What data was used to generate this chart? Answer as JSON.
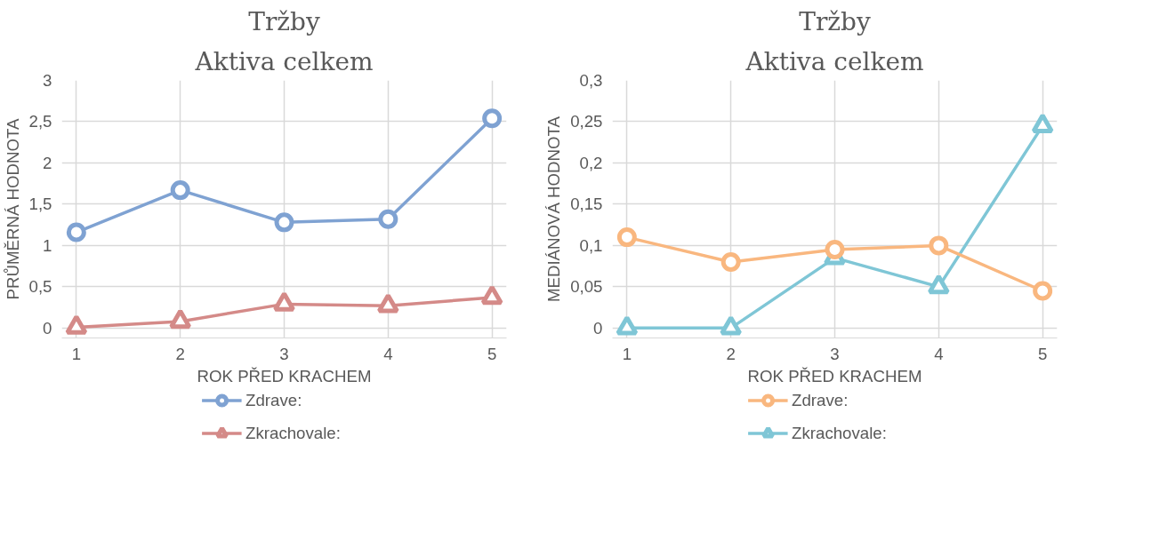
{
  "chart_data": [
    {
      "type": "line",
      "title": "Tržby",
      "subtitle": "Aktiva celkem",
      "xlabel": "ROK PŘED KRACHEM",
      "ylabel": "PRŮMĚRNÁ HODNOTA",
      "x": [
        1,
        2,
        3,
        4,
        5
      ],
      "xlim": [
        1,
        5
      ],
      "xticks": [
        1,
        2,
        3,
        4,
        5
      ],
      "ylim": [
        -0.12,
        3
      ],
      "yticks": [
        {
          "value": 0,
          "label": "0"
        },
        {
          "value": 0.5,
          "label": "0,5"
        },
        {
          "value": 1,
          "label": "1"
        },
        {
          "value": 1.5,
          "label": "1,5"
        },
        {
          "value": 2,
          "label": "2"
        },
        {
          "value": 2.5,
          "label": "2,5"
        },
        {
          "value": 3,
          "label": "3"
        }
      ],
      "grid": true,
      "legend": "bottom",
      "line_style": "solid",
      "series": [
        {
          "name": "Zdrave:",
          "color": "#7fa2d2",
          "marker": "circle",
          "values": [
            1.16,
            1.67,
            1.28,
            1.32,
            2.54
          ]
        },
        {
          "name": "Zkrachovale:",
          "color": "#d48a88",
          "marker": "triangle",
          "values": [
            0.01,
            0.08,
            0.29,
            0.27,
            0.37
          ]
        }
      ]
    },
    {
      "type": "line",
      "title": "Tržby",
      "subtitle": "Aktiva celkem",
      "xlabel": "ROK PŘED KRACHEM",
      "ylabel": "MEDIÁNOVÁ HODNOTA",
      "x": [
        1,
        2,
        3,
        4,
        5
      ],
      "xlim": [
        1,
        5
      ],
      "xticks": [
        1,
        2,
        3,
        4,
        5
      ],
      "ylim": [
        -0.012,
        0.3
      ],
      "yticks": [
        {
          "value": 0,
          "label": "0"
        },
        {
          "value": 0.05,
          "label": "0,05"
        },
        {
          "value": 0.1,
          "label": "0,1"
        },
        {
          "value": 0.15,
          "label": "0,15"
        },
        {
          "value": 0.2,
          "label": "0,2"
        },
        {
          "value": 0.25,
          "label": "0,25"
        },
        {
          "value": 0.3,
          "label": "0,3"
        }
      ],
      "grid": true,
      "legend": "bottom",
      "line_style": "solid",
      "series": [
        {
          "name": "Zdrave:",
          "color": "#f9b77f",
          "marker": "circle",
          "values": [
            0.11,
            0.08,
            0.095,
            0.1,
            0.045
          ]
        },
        {
          "name": "Zkrachovale:",
          "color": "#7fc6d6",
          "marker": "triangle",
          "values": [
            0.0,
            0.0,
            0.085,
            0.05,
            0.245
          ]
        }
      ]
    }
  ]
}
